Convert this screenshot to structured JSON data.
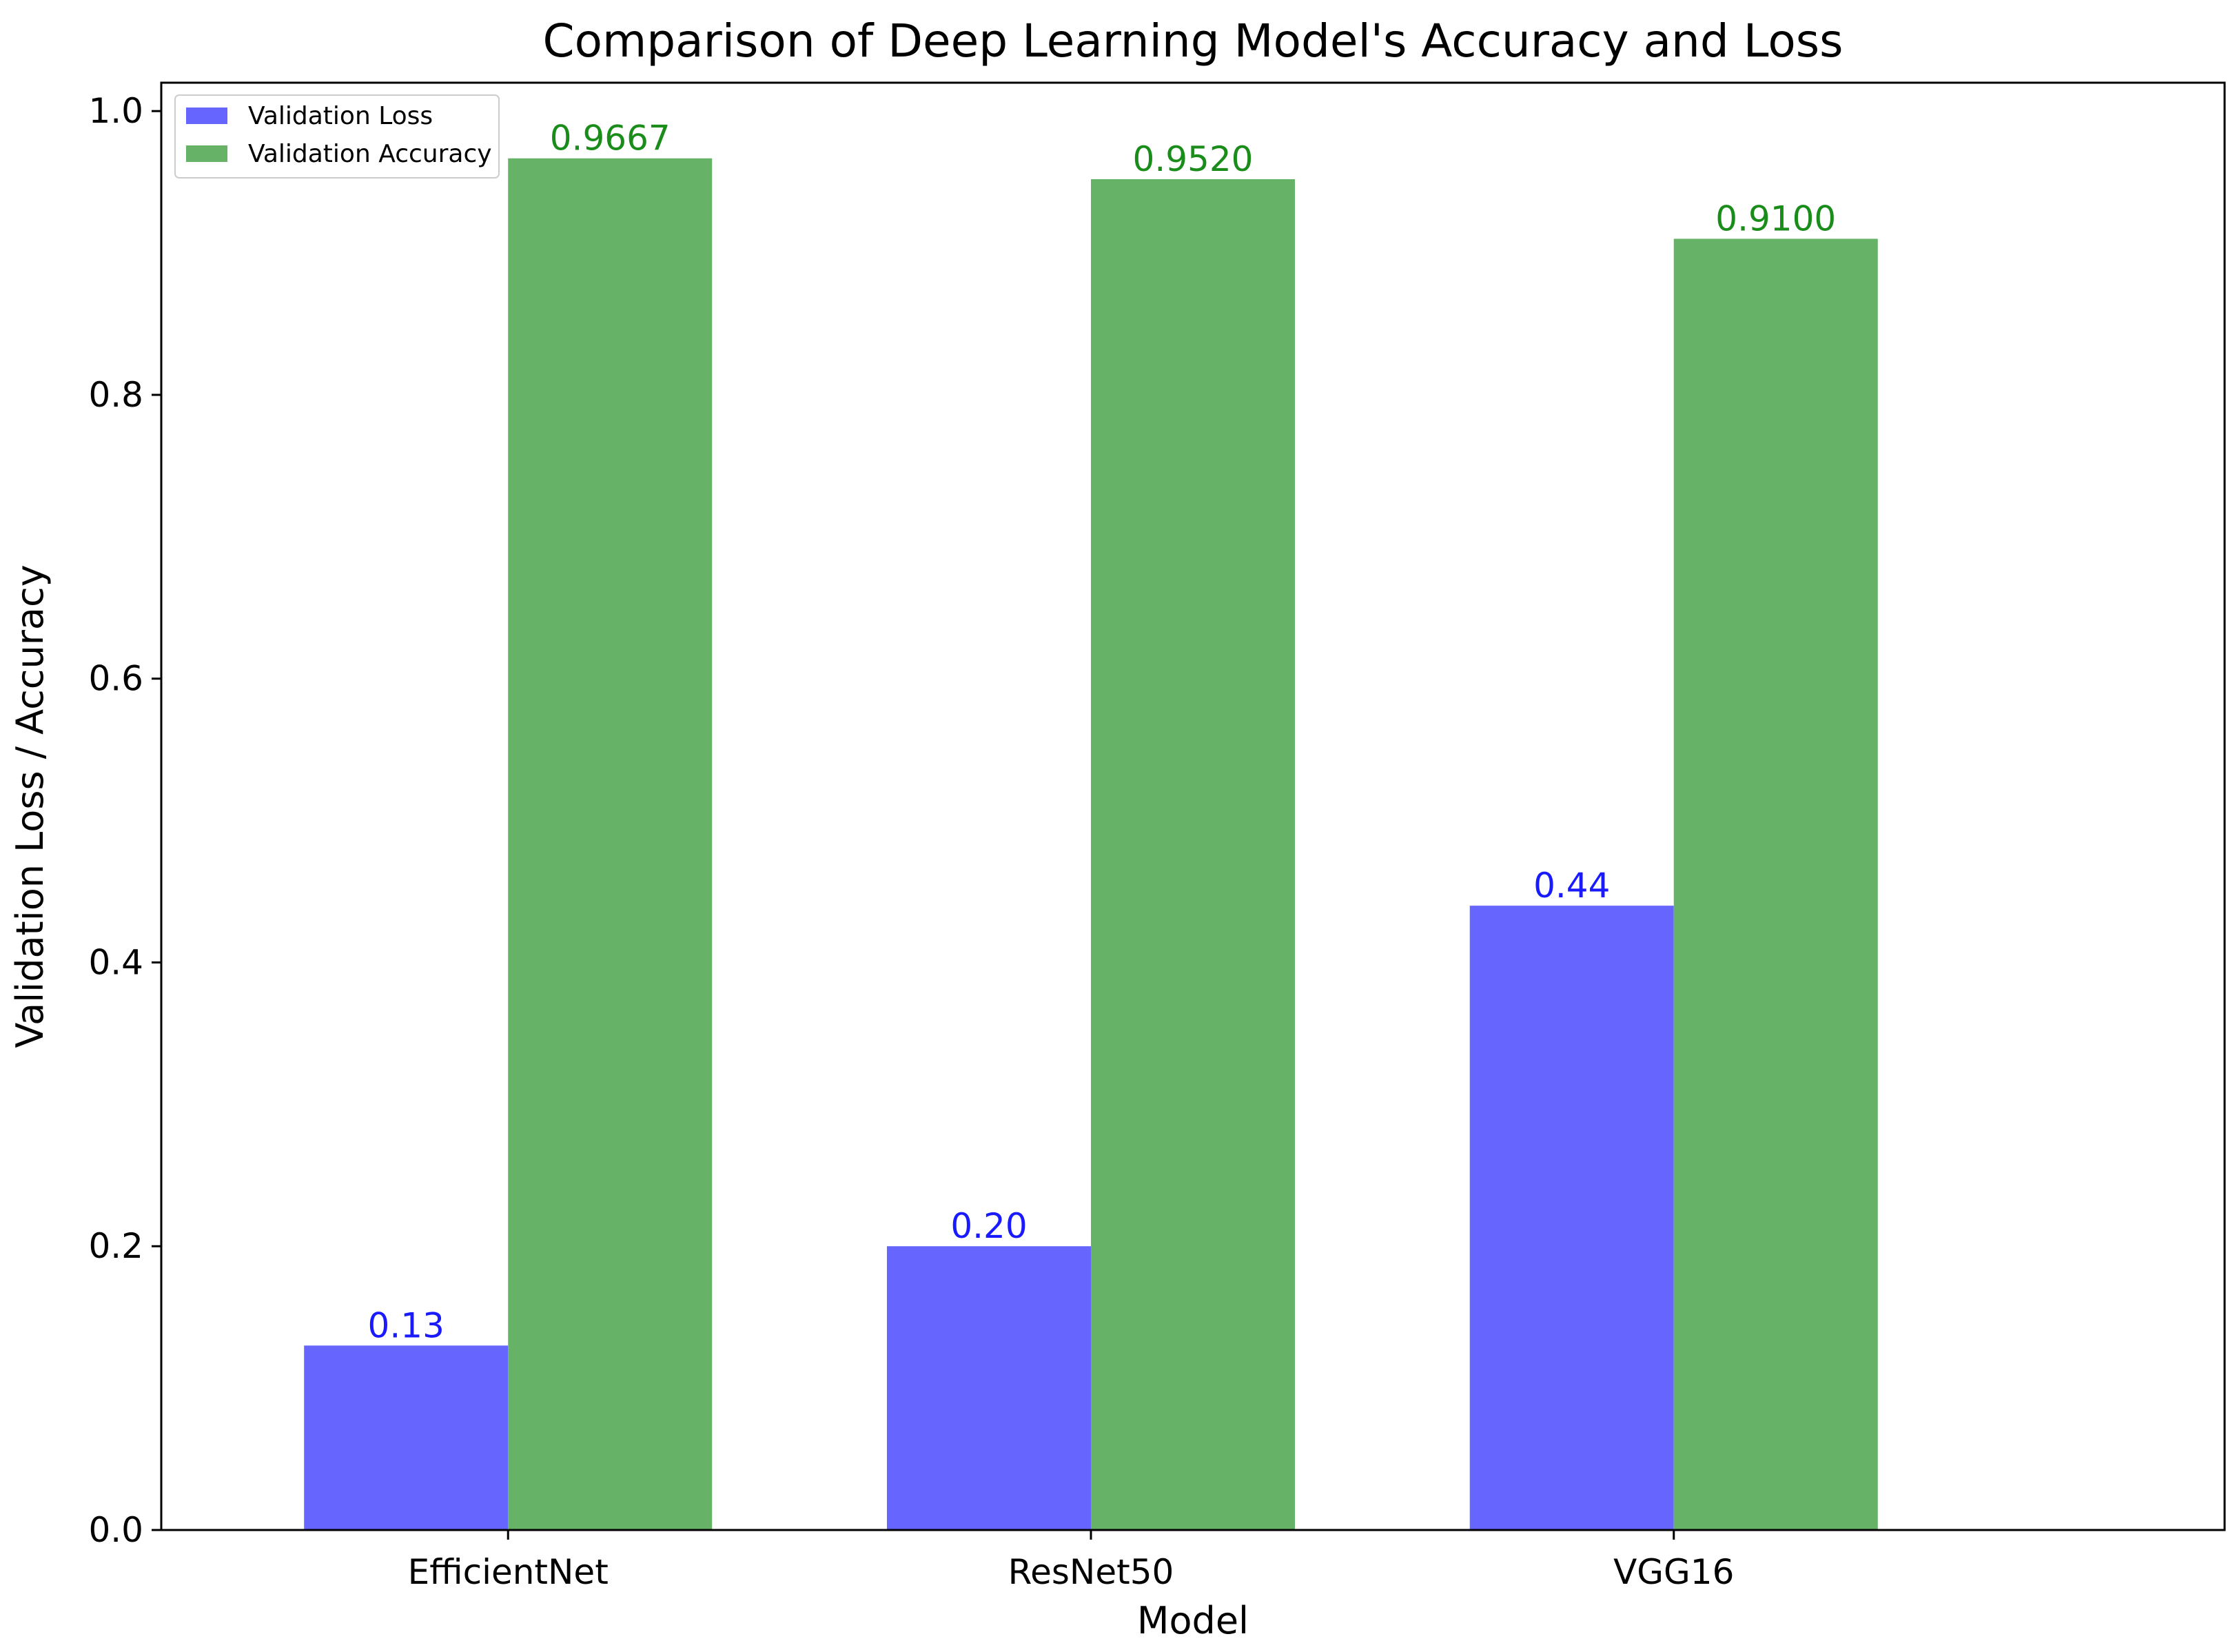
{
  "chart_data": {
    "type": "bar",
    "title": "Comparison of Deep Learning Model's Accuracy and Loss",
    "xlabel": "Model",
    "ylabel": "Validation Loss / Accuracy",
    "categories": [
      "EfficientNet",
      "ResNet50",
      "VGG16"
    ],
    "ylim": [
      0.0,
      1.02
    ],
    "yticks": [
      0.0,
      0.2,
      0.4,
      0.6,
      0.8,
      1.0
    ],
    "ytick_labels": [
      "0.0",
      "0.2",
      "0.4",
      "0.6",
      "0.8",
      "1.0"
    ],
    "grid": false,
    "legend_position": "top-left",
    "series": [
      {
        "name": "Validation Loss",
        "color": "#6666ff",
        "label_color": "#1a1aff",
        "values": [
          0.13,
          0.2,
          0.44
        ],
        "value_labels": [
          "0.13",
          "0.20",
          "0.44"
        ]
      },
      {
        "name": "Validation Accuracy",
        "color": "#66b266",
        "label_color": "#1a8c1a",
        "values": [
          0.9667,
          0.952,
          0.91
        ],
        "value_labels": [
          "0.9667",
          "0.9520",
          "0.9100"
        ]
      }
    ]
  }
}
